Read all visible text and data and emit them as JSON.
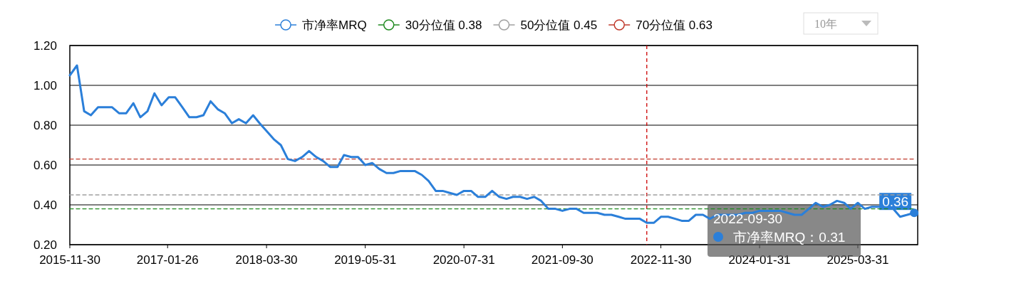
{
  "chart_data": {
    "type": "line",
    "x": [
      "2015-11-30",
      "2015-12-31",
      "2016-01-31",
      "2016-02-29",
      "2016-03-31",
      "2016-04-30",
      "2016-05-31",
      "2016-06-30",
      "2016-07-31",
      "2016-08-31",
      "2016-09-30",
      "2016-10-31",
      "2016-11-30",
      "2016-12-31",
      "2017-01-31",
      "2017-02-28",
      "2017-03-31",
      "2017-04-30",
      "2017-05-31",
      "2017-06-30",
      "2017-07-31",
      "2017-08-31",
      "2017-09-30",
      "2017-10-31",
      "2017-11-30",
      "2017-12-31",
      "2018-01-31",
      "2018-02-28",
      "2018-03-31",
      "2018-04-30",
      "2018-05-31",
      "2018-06-30",
      "2018-07-31",
      "2018-08-31",
      "2018-09-30",
      "2018-10-31",
      "2018-11-30",
      "2018-12-31",
      "2019-01-31",
      "2019-02-28",
      "2019-03-31",
      "2019-04-30",
      "2019-05-31",
      "2019-06-30",
      "2019-07-31",
      "2019-08-31",
      "2019-09-30",
      "2019-10-31",
      "2019-11-30",
      "2019-12-31",
      "2020-01-31",
      "2020-02-29",
      "2020-03-31",
      "2020-04-30",
      "2020-05-31",
      "2020-06-30",
      "2020-07-31",
      "2020-08-31",
      "2020-09-30",
      "2020-10-31",
      "2020-11-30",
      "2020-12-31",
      "2021-01-31",
      "2021-02-28",
      "2021-03-31",
      "2021-04-30",
      "2021-05-31",
      "2021-06-30",
      "2021-07-31",
      "2021-08-31",
      "2021-09-30",
      "2021-10-31",
      "2021-11-30",
      "2021-12-31",
      "2022-01-31",
      "2022-02-28",
      "2022-03-31",
      "2022-04-30",
      "2022-05-31",
      "2022-06-30",
      "2022-07-31",
      "2022-08-31",
      "2022-09-30",
      "2022-10-31",
      "2022-11-30",
      "2022-12-31",
      "2023-01-31",
      "2023-02-28",
      "2023-03-31",
      "2023-04-30",
      "2023-05-31",
      "2023-06-30",
      "2023-07-31",
      "2023-08-31",
      "2023-09-30",
      "2023-10-31",
      "2023-11-30",
      "2023-12-31",
      "2024-01-31",
      "2024-02-29",
      "2024-03-31",
      "2024-04-30",
      "2024-05-31",
      "2024-06-30",
      "2024-07-31",
      "2024-08-31",
      "2024-09-30",
      "2024-10-31",
      "2024-11-30",
      "2024-12-31",
      "2025-01-31",
      "2025-02-28",
      "2025-03-31",
      "2025-04-30",
      "2025-05-31",
      "2025-06-30",
      "2025-07-31",
      "2025-08-31",
      "2025-09-30",
      "2025-10-31",
      "2025-11-30"
    ],
    "series": [
      {
        "name": "市净率MRQ",
        "color": "#2b7fd9",
        "values": [
          1.05,
          1.1,
          0.87,
          0.85,
          0.89,
          0.89,
          0.89,
          0.86,
          0.86,
          0.91,
          0.84,
          0.87,
          0.96,
          0.9,
          0.94,
          0.94,
          0.89,
          0.84,
          0.84,
          0.85,
          0.92,
          0.88,
          0.86,
          0.81,
          0.83,
          0.81,
          0.85,
          0.81,
          0.77,
          0.73,
          0.7,
          0.63,
          0.62,
          0.64,
          0.67,
          0.64,
          0.62,
          0.59,
          0.59,
          0.65,
          0.64,
          0.64,
          0.6,
          0.61,
          0.58,
          0.56,
          0.56,
          0.57,
          0.57,
          0.57,
          0.55,
          0.52,
          0.47,
          0.47,
          0.46,
          0.45,
          0.47,
          0.47,
          0.44,
          0.44,
          0.47,
          0.44,
          0.43,
          0.44,
          0.44,
          0.43,
          0.44,
          0.42,
          0.38,
          0.38,
          0.37,
          0.38,
          0.38,
          0.36,
          0.36,
          0.36,
          0.35,
          0.35,
          0.34,
          0.33,
          0.33,
          0.33,
          0.31,
          0.31,
          0.34,
          0.34,
          0.33,
          0.32,
          0.32,
          0.35,
          0.35,
          0.33,
          0.35,
          0.35,
          0.35,
          0.35,
          0.36,
          0.36,
          0.37,
          0.37,
          0.37,
          0.37,
          0.36,
          0.35,
          0.35,
          0.38,
          0.41,
          0.39,
          0.4,
          0.42,
          0.41,
          0.38,
          0.41,
          0.38,
          0.39,
          0.39,
          0.39,
          0.38,
          0.34,
          0.35,
          0.36
        ]
      },
      {
        "name": "30分位值 0.38",
        "color": "#1f8a1f",
        "line_style": "dashed",
        "x": [
          "2015-11-30",
          "2025-11-30"
        ],
        "values": [
          0.38,
          0.38
        ]
      },
      {
        "name": "50分位值 0.45",
        "color": "#a0a0a0",
        "line_style": "dashed",
        "x": [
          "2015-11-30",
          "2025-11-30"
        ],
        "values": [
          0.45,
          0.45
        ]
      },
      {
        "name": "70分位值 0.63",
        "color": "#c0392b",
        "line_style": "dashed",
        "x": [
          "2015-11-30",
          "2025-11-30"
        ],
        "values": [
          0.63,
          0.63
        ]
      }
    ],
    "xlim": [
      "2015-11-30",
      "2025-12-15"
    ],
    "xticks": [
      "2015-11-30",
      "2017-01-26",
      "2018-03-30",
      "2019-05-31",
      "2020-07-31",
      "2021-09-30",
      "2022-11-30",
      "2024-01-31",
      "2025-03-31"
    ],
    "ylim": [
      0.2,
      1.2
    ],
    "yticks": [
      {
        "value": 0.2,
        "label": "0.20"
      },
      {
        "value": 0.4,
        "label": "0.40"
      },
      {
        "value": 0.6,
        "label": "0.60"
      },
      {
        "value": 0.8,
        "label": "0.80"
      },
      {
        "value": 1.0,
        "label": "1.00"
      },
      {
        "value": 1.2,
        "label": "1.20"
      }
    ],
    "grid": "y",
    "legend": "top",
    "ref_lines": [
      {
        "axis": "x",
        "value": "2022-09-30",
        "color": "#cc0000",
        "line_style": "dashed"
      }
    ],
    "annotations": [
      "10年",
      "2022-09-30\n市净率MRQ：0.31",
      {
        "text": "0.36",
        "x": "2025-11-30",
        "y": 0.36
      }
    ]
  }
}
